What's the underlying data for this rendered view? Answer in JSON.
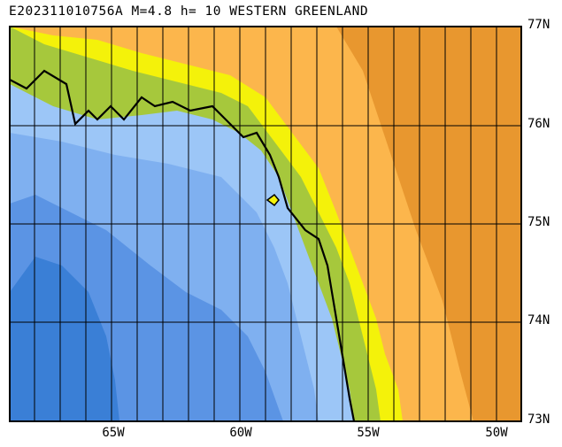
{
  "title": "E202311010756A M=4.8 h= 10 WESTERN GREENLAND",
  "lat_labels": [
    "77N",
    "76N",
    "75N",
    "74N",
    "73N"
  ],
  "lon_labels": [
    "65W",
    "60W",
    "55W",
    "50W"
  ],
  "colors": {
    "ocean_deep": "#3a7fd6",
    "ocean_mid": "#5b94e4",
    "ocean_shallow": "#7fb0f0",
    "ocean_shelf": "#9cc6f7",
    "coast_green": "#a6c83c",
    "coast_yellow": "#f4f20a",
    "land_low": "#fcb64c",
    "land_high": "#e8972f",
    "grid": "#000000"
  }
}
